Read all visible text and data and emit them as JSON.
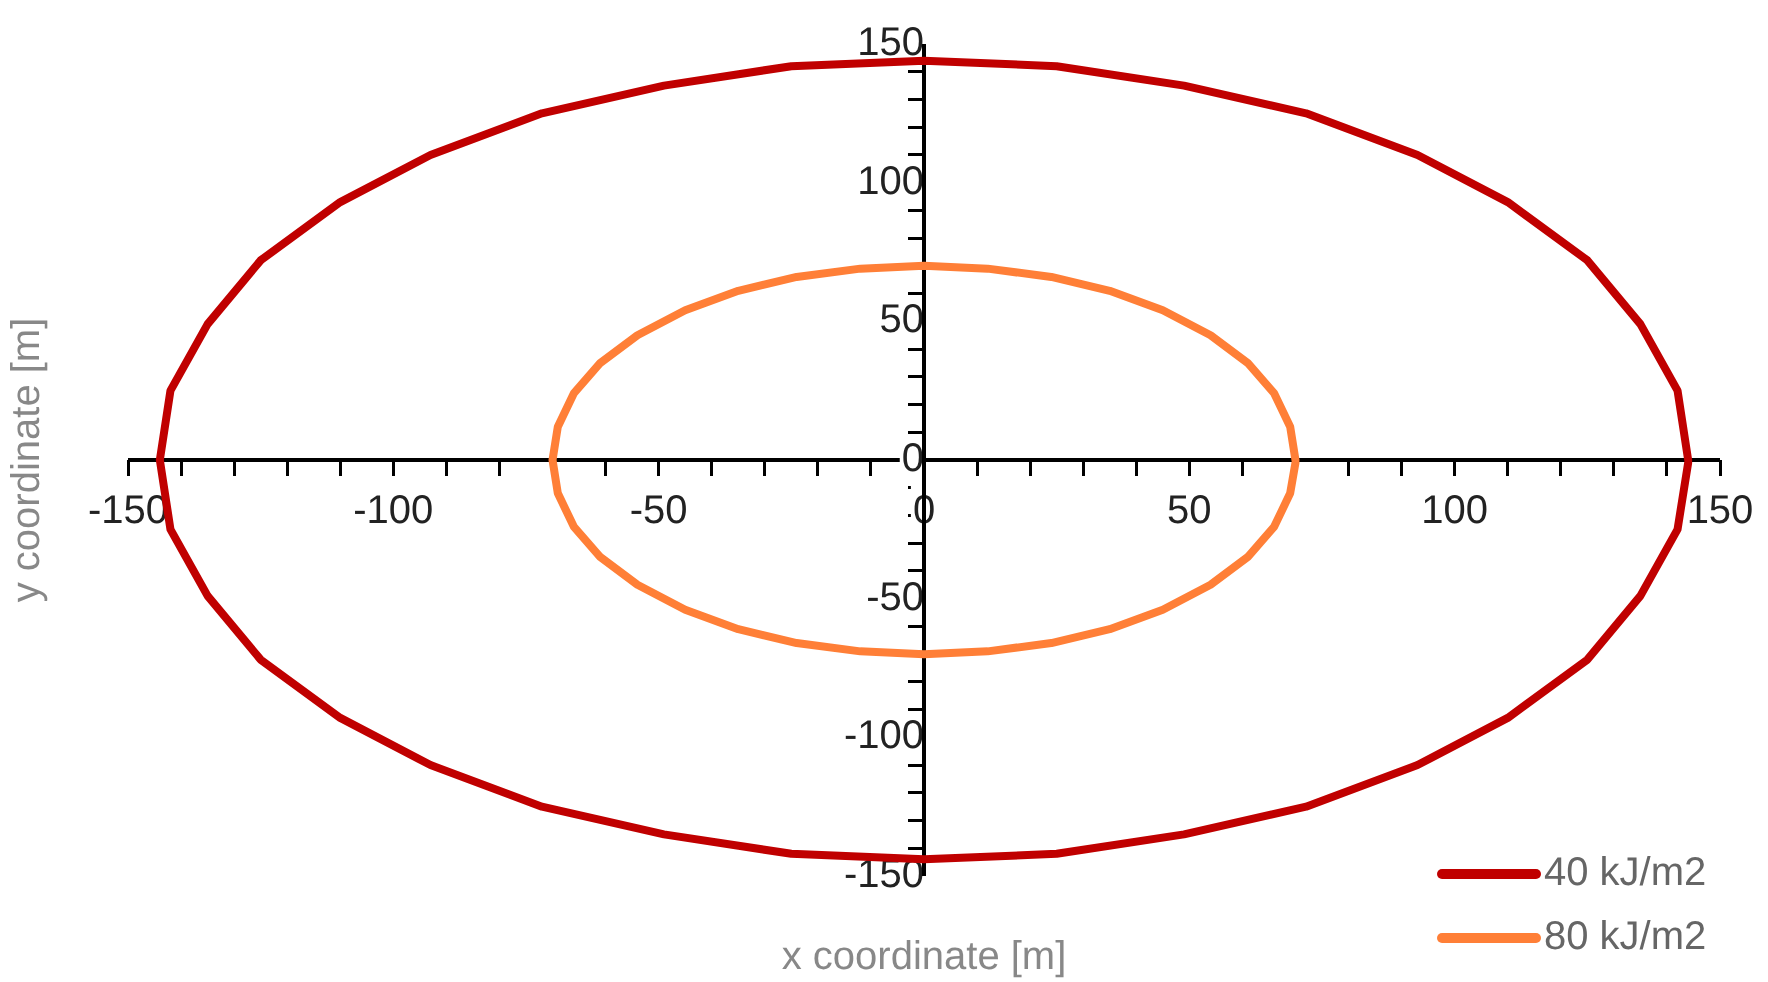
{
  "chart_data": {
    "type": "line",
    "xlabel": "x coordinate [m]",
    "ylabel": "y coordinate [m]",
    "xlim": [
      -150,
      150
    ],
    "ylim": [
      -150,
      150
    ],
    "xticks": [
      -150,
      {
        "value": -140,
        "label": null
      },
      {
        "value": -130,
        "label": null
      },
      {
        "value": -120,
        "label": null
      },
      {
        "value": -110,
        "label": null
      },
      -100,
      {
        "value": -90,
        "label": null
      },
      {
        "value": -80,
        "label": null
      },
      {
        "value": -70,
        "label": null
      },
      {
        "value": -60,
        "label": null
      },
      -50,
      {
        "value": -40,
        "label": null
      },
      {
        "value": -30,
        "label": null
      },
      {
        "value": -20,
        "label": null
      },
      {
        "value": -10,
        "label": null
      },
      0,
      {
        "value": 10,
        "label": null
      },
      {
        "value": 20,
        "label": null
      },
      {
        "value": 30,
        "label": null
      },
      {
        "value": 40,
        "label": null
      },
      50,
      {
        "value": 60,
        "label": null
      },
      {
        "value": 70,
        "label": null
      },
      {
        "value": 80,
        "label": null
      },
      {
        "value": 90,
        "label": null
      },
      100,
      {
        "value": 110,
        "label": null
      },
      {
        "value": 120,
        "label": null
      },
      {
        "value": 130,
        "label": null
      },
      {
        "value": 140,
        "label": null
      },
      150
    ],
    "yticks": [
      -150,
      {
        "value": -140,
        "label": null
      },
      {
        "value": -130,
        "label": null
      },
      {
        "value": -120,
        "label": null
      },
      {
        "value": -110,
        "label": null
      },
      -100,
      {
        "value": -90,
        "label": null
      },
      {
        "value": -80,
        "label": null
      },
      {
        "value": -70,
        "label": null
      },
      {
        "value": -60,
        "label": null
      },
      -50,
      {
        "value": -40,
        "label": null
      },
      {
        "value": -30,
        "label": null
      },
      {
        "value": -20,
        "label": null
      },
      {
        "value": -10,
        "label": null
      },
      0,
      {
        "value": 10,
        "label": null
      },
      {
        "value": 20,
        "label": null
      },
      {
        "value": 30,
        "label": null
      },
      {
        "value": 40,
        "label": null
      },
      50,
      {
        "value": 60,
        "label": null
      },
      {
        "value": 70,
        "label": null
      },
      {
        "value": 80,
        "label": null
      },
      {
        "value": 90,
        "label": null
      },
      100,
      {
        "value": 110,
        "label": null
      },
      {
        "value": 120,
        "label": null
      },
      {
        "value": 130,
        "label": null
      },
      {
        "value": 140,
        "label": null
      },
      150
    ],
    "grid": false,
    "legend": "bottom right",
    "marker": "none",
    "line_style": "solid",
    "series": [
      {
        "name": "40 kJ/m2",
        "color": "#c00000",
        "x": [
          144,
          142,
          135,
          125,
          110,
          93,
          72,
          49,
          25,
          0,
          -25,
          -49,
          -72,
          -93,
          -110,
          -125,
          -135,
          -142,
          -144,
          -142,
          -135,
          -125,
          -110,
          -93,
          -72,
          -49,
          -25,
          0,
          25,
          49,
          72,
          93,
          110,
          125,
          135,
          142,
          144
        ],
        "values": [
          0,
          25,
          49,
          72,
          93,
          110,
          125,
          135,
          142,
          144,
          142,
          135,
          125,
          110,
          93,
          72,
          49,
          25,
          0,
          -25,
          -49,
          -72,
          -93,
          -110,
          -125,
          -135,
          -142,
          -144,
          -142,
          -135,
          -125,
          -110,
          -93,
          -72,
          -49,
          -25,
          -1
        ]
      },
      {
        "name": "80 kJ/m2",
        "color": "#ff7f37",
        "x": [
          70,
          69,
          66,
          61,
          54,
          45,
          35,
          24,
          12,
          0,
          -12,
          -24,
          -35,
          -45,
          -54,
          -61,
          -66,
          -69,
          -70,
          -69,
          -66,
          -61,
          -54,
          -45,
          -35,
          -24,
          -12,
          0,
          12,
          24,
          35,
          45,
          54,
          61,
          66,
          69,
          70
        ],
        "values": [
          0,
          12,
          24,
          35,
          45,
          54,
          61,
          66,
          69,
          70,
          69,
          66,
          61,
          54,
          45,
          35,
          24,
          12,
          0,
          -12,
          -24,
          -35,
          -45,
          -54,
          -61,
          -66,
          -69,
          -70,
          -69,
          -66,
          -61,
          -54,
          -45,
          -35,
          -24,
          -12,
          -1
        ]
      }
    ]
  }
}
